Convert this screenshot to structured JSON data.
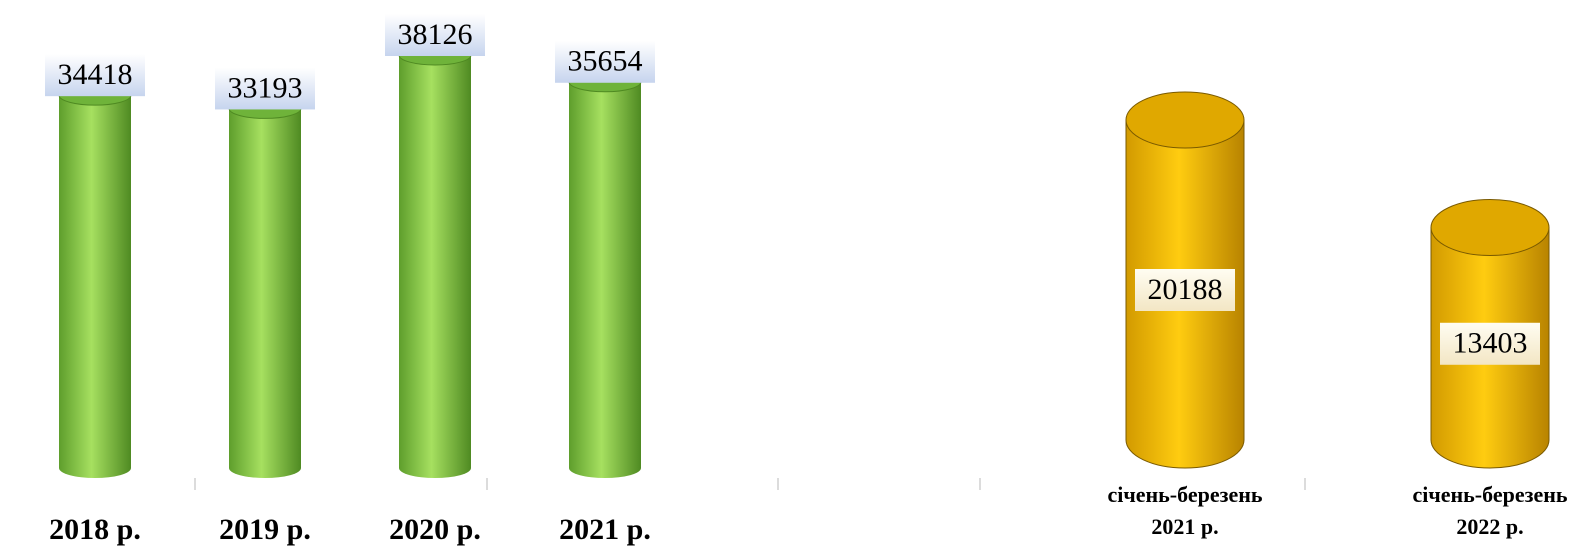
{
  "chart_data": [
    {
      "type": "cylinder",
      "categories": [
        "2018 р.",
        "2019 р.",
        "2020 р.",
        "2021 р."
      ],
      "values": [
        34418,
        33193,
        38126,
        35654
      ],
      "color": "#92d050"
    },
    {
      "type": "cylinder",
      "categories": [
        "січень-березень 2021 р.",
        "січень-березень 2022 р."
      ],
      "values": [
        20188,
        13403
      ],
      "color": "#ffc000"
    }
  ]
}
